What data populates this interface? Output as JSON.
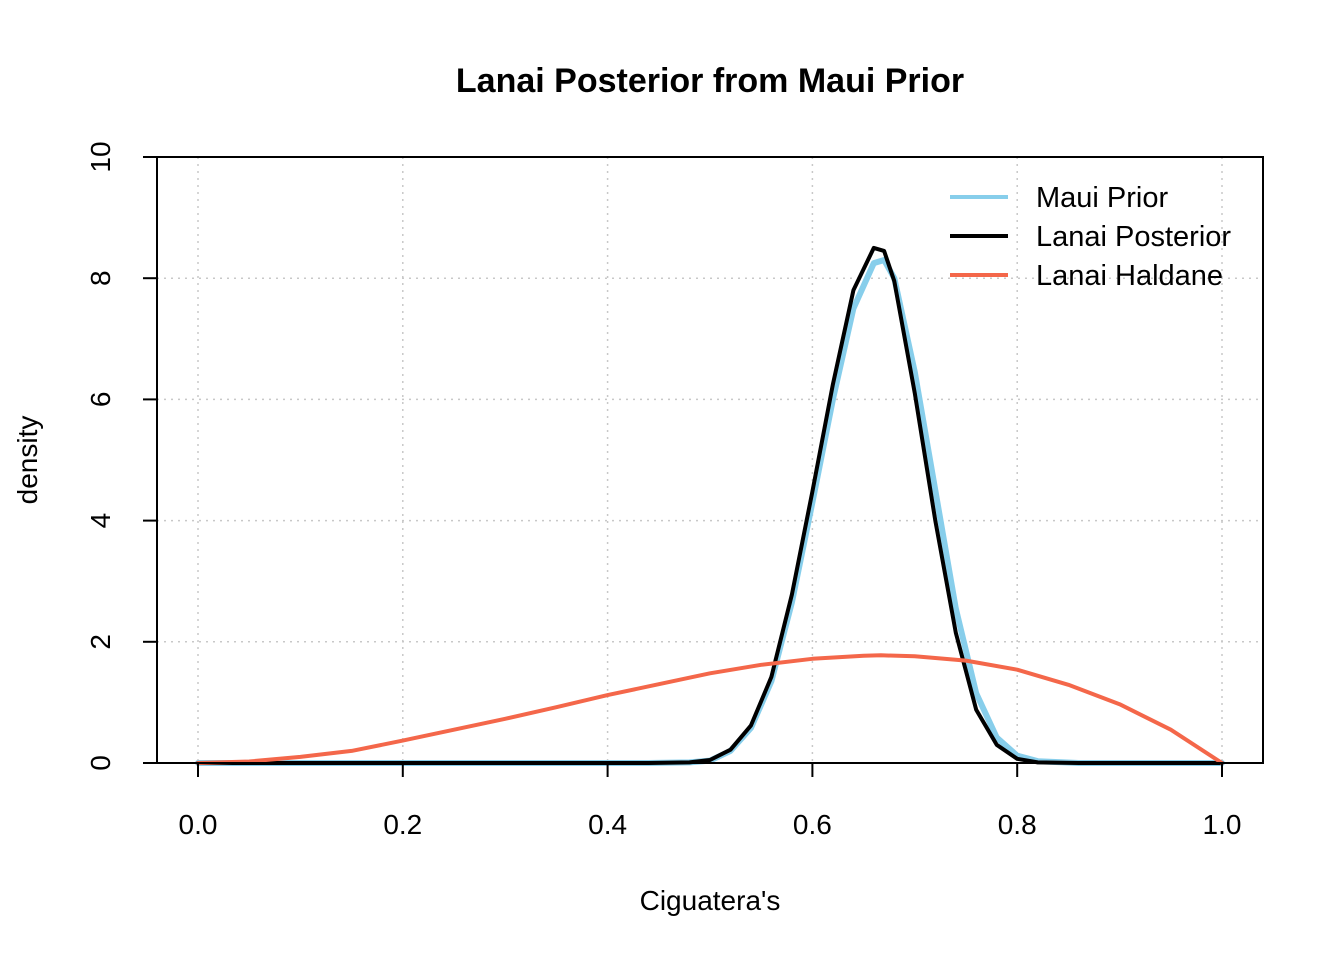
{
  "chart_data": {
    "type": "line",
    "title": "Lanai Posterior from Maui Prior",
    "xlabel": "Ciguatera's",
    "ylabel": "density",
    "xlim": [
      0,
      1
    ],
    "ylim": [
      0,
      10
    ],
    "x_ticks": [
      {
        "value": 0.0,
        "label": "0.0"
      },
      {
        "value": 0.2,
        "label": "0.2"
      },
      {
        "value": 0.4,
        "label": "0.4"
      },
      {
        "value": 0.6,
        "label": "0.6"
      },
      {
        "value": 0.8,
        "label": "0.8"
      },
      {
        "value": 1.0,
        "label": "1.0"
      }
    ],
    "y_ticks": [
      {
        "value": 0,
        "label": "0"
      },
      {
        "value": 2,
        "label": "2"
      },
      {
        "value": 4,
        "label": "4"
      },
      {
        "value": 6,
        "label": "6"
      },
      {
        "value": 8,
        "label": "8"
      },
      {
        "value": 10,
        "label": "10"
      }
    ],
    "grid": true,
    "legend_position": "top-right",
    "series": [
      {
        "name": "Maui Prior",
        "color": "#87CEEB",
        "x": [
          0.0,
          0.44,
          0.48,
          0.5,
          0.52,
          0.54,
          0.56,
          0.58,
          0.6,
          0.62,
          0.64,
          0.66,
          0.67,
          0.68,
          0.7,
          0.72,
          0.74,
          0.76,
          0.78,
          0.8,
          0.82,
          0.86,
          1.0
        ],
        "y": [
          0.0,
          0.0,
          0.01,
          0.04,
          0.2,
          0.58,
          1.35,
          2.65,
          4.3,
          6.0,
          7.5,
          8.25,
          8.3,
          8.0,
          6.45,
          4.5,
          2.55,
          1.15,
          0.42,
          0.12,
          0.03,
          0.0,
          0.0
        ]
      },
      {
        "name": "Lanai Posterior",
        "color": "#000000",
        "x": [
          0.0,
          0.44,
          0.48,
          0.5,
          0.52,
          0.54,
          0.56,
          0.58,
          0.6,
          0.62,
          0.64,
          0.66,
          0.67,
          0.68,
          0.7,
          0.72,
          0.74,
          0.76,
          0.78,
          0.8,
          0.82,
          0.86,
          1.0
        ],
        "y": [
          0.0,
          0.0,
          0.01,
          0.05,
          0.22,
          0.62,
          1.42,
          2.78,
          4.48,
          6.25,
          7.8,
          8.5,
          8.45,
          7.95,
          6.1,
          4.0,
          2.15,
          0.88,
          0.3,
          0.07,
          0.01,
          0.0,
          0.0
        ]
      },
      {
        "name": "Lanai Haldane",
        "color": "#F4674A",
        "x": [
          0.0,
          0.05,
          0.1,
          0.15,
          0.2,
          0.25,
          0.3,
          0.35,
          0.4,
          0.45,
          0.5,
          0.55,
          0.6,
          0.65,
          0.667,
          0.7,
          0.75,
          0.8,
          0.85,
          0.9,
          0.95,
          1.0
        ],
        "y": [
          0.0,
          0.025,
          0.1,
          0.2,
          0.37,
          0.55,
          0.73,
          0.92,
          1.12,
          1.3,
          1.48,
          1.62,
          1.72,
          1.77,
          1.778,
          1.76,
          1.69,
          1.54,
          1.29,
          0.97,
          0.55,
          0.0
        ]
      }
    ]
  }
}
